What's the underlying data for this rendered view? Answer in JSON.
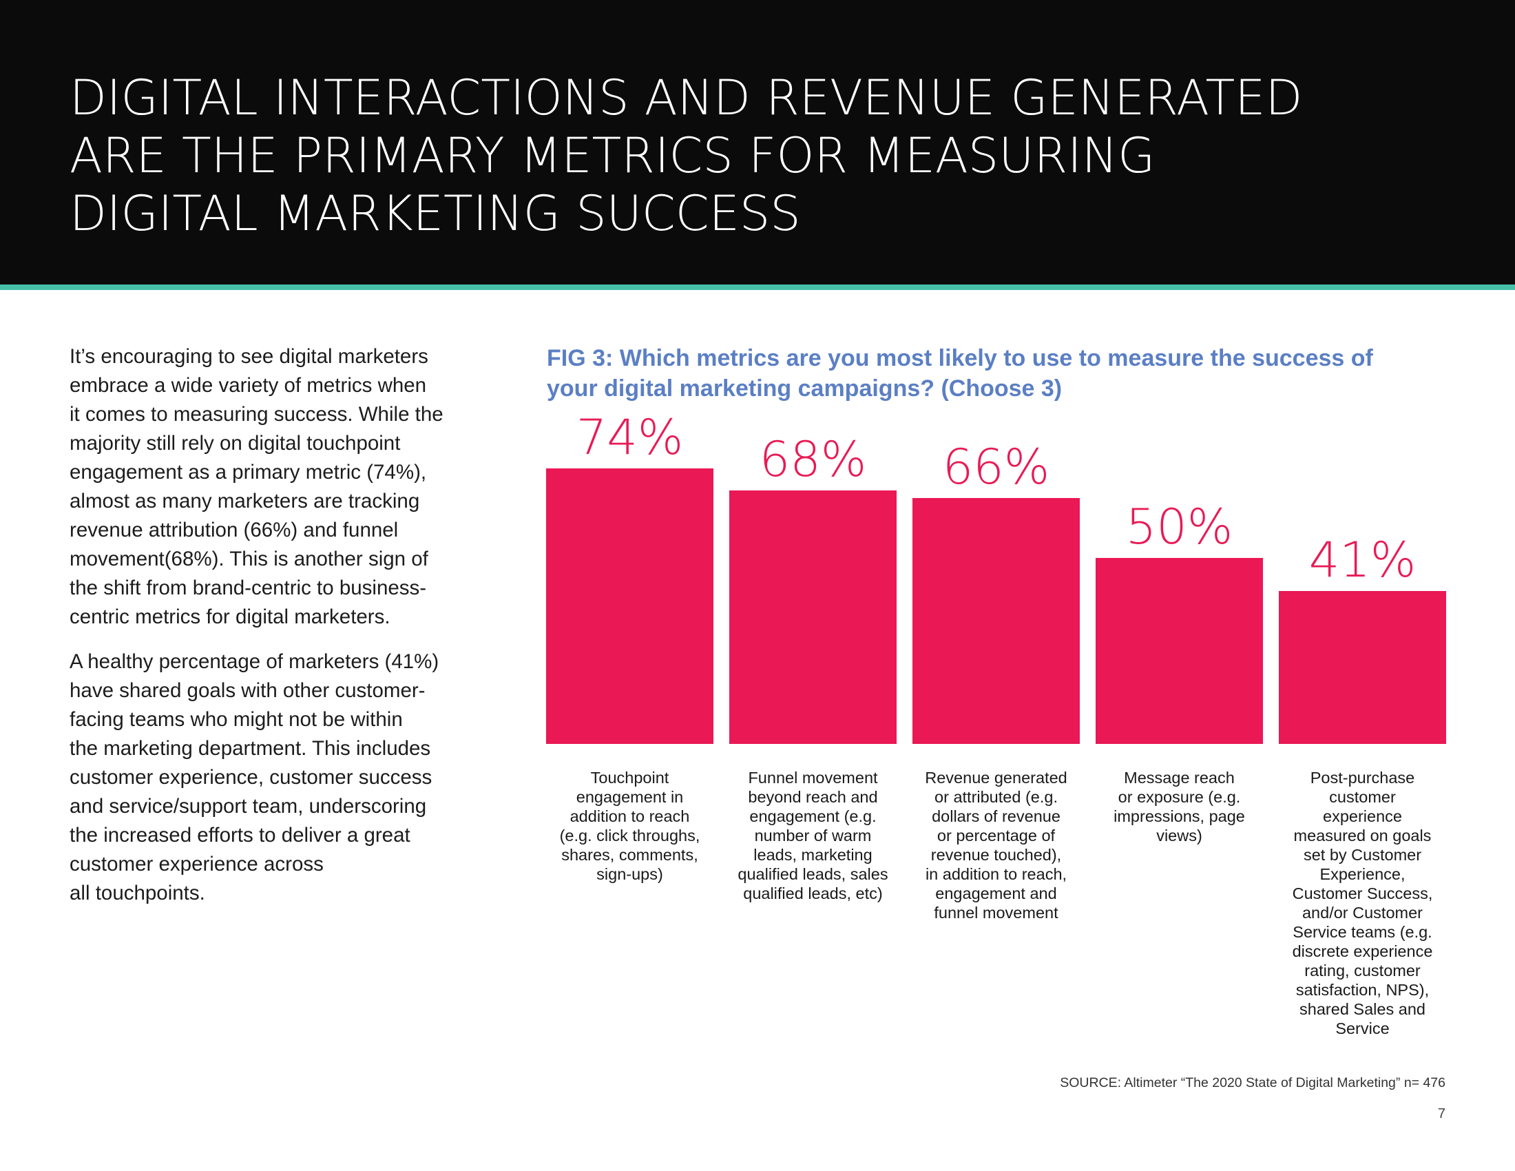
{
  "header": {
    "title_lines": [
      "DIGITAL INTERACTIONS AND REVENUE GENERATED",
      "ARE THE PRIMARY METRICS FOR MEASURING",
      "DIGITAL MARKETING SUCCESS"
    ],
    "background": "#0b0b0b",
    "rule_color": "#45bfa8"
  },
  "body": {
    "paragraphs": [
      {
        "lines": [
          "It’s encouraging to see digital marketers",
          "embrace a wide variety of metrics when",
          "it comes to measuring success. While the",
          "majority still rely on digital touchpoint",
          "engagement as a primary metric (74%),",
          "almost as many marketers are tracking",
          "revenue attribution (66%) and funnel",
          "movement(68%). This is another sign of",
          "the shift from brand-centric to business-",
          "centric metrics for digital marketers."
        ]
      },
      {
        "lines": [
          "A healthy percentage of marketers (41%)",
          "have shared goals with other customer-",
          "facing teams who might not be within",
          "the marketing department. This includes",
          "customer experience, customer success",
          "and service/support team, underscoring",
          "the increased efforts to deliver a great",
          "customer experience across",
          "all touchpoints."
        ]
      }
    ]
  },
  "figure": {
    "title_lines": [
      "FIG 3: Which metrics are you most likely to use to measure the success of",
      "your digital marketing campaigns? (Choose 3)"
    ],
    "title_color": "#5b7fc4"
  },
  "chart_data": {
    "type": "bar",
    "title": "FIG 3: Which metrics are you most likely to use to measure the success of your digital marketing campaigns? (Choose 3)",
    "xlabel": "",
    "ylabel": "",
    "ylim": [
      0,
      100
    ],
    "grid": false,
    "bar_color": "#ea1855",
    "label_color": "#e81a55",
    "categories": [
      "Touchpoint engagement in addition to reach (e.g. click throughs, shares, comments, sign-ups)",
      "Funnel movement beyond reach and engagement (e.g. number of warm leads, marketing qualified leads, sales qualified leads, etc)",
      "Revenue generated or attributed (e.g. dollars of revenue or percentage of revenue touched), in addition to reach, engagement and funnel movement",
      "Message reach or exposure (e.g. impressions, page views)",
      "Post-purchase customer experience measured on goals set by Customer Experience, Customer Success, and/or Customer Service teams (e.g. discrete experience rating, customer satisfaction, NPS), shared Sales and Service"
    ],
    "category_lines": [
      [
        "Touchpoint",
        "engagement in",
        "addition to reach",
        "(e.g. click throughs,",
        "shares, comments,",
        "sign-ups)"
      ],
      [
        "Funnel movement",
        "beyond reach and",
        "engagement (e.g.",
        "number of warm",
        "leads, marketing",
        "qualified leads, sales",
        "qualified leads, etc)"
      ],
      [
        "Revenue generated",
        "or attributed (e.g.",
        "dollars of revenue",
        "or percentage of",
        "revenue touched),",
        "in addition to reach,",
        "engagement and",
        "funnel movement"
      ],
      [
        "Message reach",
        "or exposure (e.g.",
        "impressions, page",
        "views)"
      ],
      [
        "Post-purchase",
        "customer",
        "experience",
        "measured on goals",
        "set by Customer",
        "Experience,",
        "Customer Success,",
        "and/or Customer",
        "Service teams (e.g.",
        "discrete experience",
        "rating, customer",
        "satisfaction, NPS),",
        "shared Sales and",
        "Service"
      ]
    ],
    "values": [
      74,
      68,
      66,
      50,
      41
    ],
    "value_labels": [
      "74%",
      "68%",
      "66%",
      "50%",
      "41%"
    ]
  },
  "footer": {
    "source": "SOURCE: Altimeter “The 2020 State of Digital Marketing” n= 476",
    "page_number": "7"
  }
}
